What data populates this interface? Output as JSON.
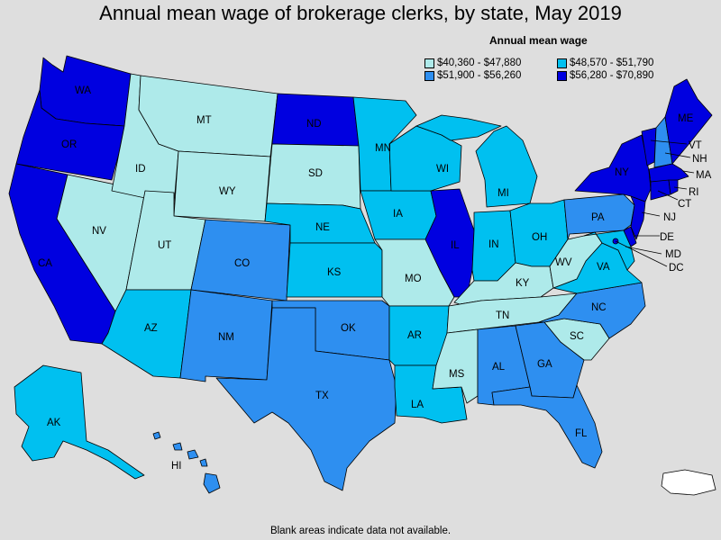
{
  "title": "Annual mean wage of brokerage clerks, by state, May 2019",
  "legend": {
    "title": "Annual mean wage",
    "bins": [
      {
        "label": "$40,360 - $47,880",
        "color": "#aeeaea"
      },
      {
        "label": "$48,570 - $51,790",
        "color": "#00c0f0"
      },
      {
        "label": "$51,900 - $56,260",
        "color": "#2e8ff0"
      },
      {
        "label": "$56,280 - $70,890",
        "color": "#0000e0"
      }
    ],
    "no_data_color": "#ffffff"
  },
  "footnote": "Blank areas indicate data not available.",
  "states": [
    {
      "abbr": "WA",
      "bin": 3
    },
    {
      "abbr": "OR",
      "bin": 3
    },
    {
      "abbr": "CA",
      "bin": 3
    },
    {
      "abbr": "NV",
      "bin": 0
    },
    {
      "abbr": "ID",
      "bin": 0
    },
    {
      "abbr": "MT",
      "bin": 0
    },
    {
      "abbr": "WY",
      "bin": 0
    },
    {
      "abbr": "UT",
      "bin": 0
    },
    {
      "abbr": "AZ",
      "bin": 1
    },
    {
      "abbr": "CO",
      "bin": 2
    },
    {
      "abbr": "NM",
      "bin": 2
    },
    {
      "abbr": "ND",
      "bin": 3
    },
    {
      "abbr": "SD",
      "bin": 0
    },
    {
      "abbr": "NE",
      "bin": 1
    },
    {
      "abbr": "KS",
      "bin": 1
    },
    {
      "abbr": "OK",
      "bin": 2
    },
    {
      "abbr": "TX",
      "bin": 2
    },
    {
      "abbr": "MN",
      "bin": 1
    },
    {
      "abbr": "IA",
      "bin": 1
    },
    {
      "abbr": "MO",
      "bin": 0
    },
    {
      "abbr": "AR",
      "bin": 1
    },
    {
      "abbr": "LA",
      "bin": 1
    },
    {
      "abbr": "WI",
      "bin": 1
    },
    {
      "abbr": "IL",
      "bin": 3
    },
    {
      "abbr": "MI",
      "bin": 1
    },
    {
      "abbr": "IN",
      "bin": 1
    },
    {
      "abbr": "OH",
      "bin": 1
    },
    {
      "abbr": "KY",
      "bin": 0
    },
    {
      "abbr": "TN",
      "bin": 0
    },
    {
      "abbr": "MS",
      "bin": 0
    },
    {
      "abbr": "AL",
      "bin": 2
    },
    {
      "abbr": "GA",
      "bin": 2
    },
    {
      "abbr": "FL",
      "bin": 2
    },
    {
      "abbr": "SC",
      "bin": 0
    },
    {
      "abbr": "NC",
      "bin": 2
    },
    {
      "abbr": "VA",
      "bin": 1
    },
    {
      "abbr": "WV",
      "bin": 0
    },
    {
      "abbr": "PA",
      "bin": 2
    },
    {
      "abbr": "NY",
      "bin": 3
    },
    {
      "abbr": "NJ",
      "bin": 3
    },
    {
      "abbr": "DE",
      "bin": 3
    },
    {
      "abbr": "MD",
      "bin": 1
    },
    {
      "abbr": "DC",
      "bin": 3
    },
    {
      "abbr": "CT",
      "bin": 3
    },
    {
      "abbr": "RI",
      "bin": 3
    },
    {
      "abbr": "MA",
      "bin": 3
    },
    {
      "abbr": "VT",
      "bin": 3
    },
    {
      "abbr": "NH",
      "bin": 2
    },
    {
      "abbr": "ME",
      "bin": 3
    },
    {
      "abbr": "AK",
      "bin": 1
    },
    {
      "abbr": "HI",
      "bin": 2
    },
    {
      "abbr": "PR",
      "bin": null
    }
  ]
}
